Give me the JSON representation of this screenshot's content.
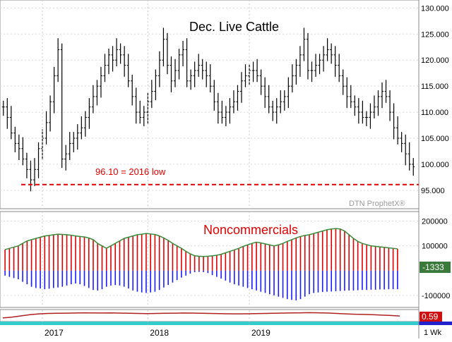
{
  "colors": {
    "price_bar": "#000000",
    "low_line": "#e00000",
    "buy_bar": "#e00000",
    "sell_bar": "#1a1aff",
    "net_line": "#3a8a3a",
    "net_badge": "#3a7a3a",
    "ratio_line": "#b02020",
    "ratio_badge": "#d01010",
    "bottom_strip": "#33cccc",
    "bottom_strip_right": "#2222cc"
  },
  "chart_data": [
    {
      "type": "bar",
      "subtype": "ohlc-weekly",
      "title": "Dec. Live Cattle",
      "watermark": "DTN ProphetX®",
      "annotation": {
        "text": "96.10 = 2016 low",
        "value": 96.1
      },
      "y_ticks": [
        "130.000",
        "125.000",
        "120.000",
        "115.000",
        "110.000",
        "105.000",
        "100.000",
        "95.000"
      ],
      "y_tick_values": [
        130,
        125,
        120,
        115,
        110,
        105,
        100,
        95
      ],
      "ylim": [
        92,
        131
      ],
      "x_labels": [
        "2017",
        "2018",
        "2019"
      ],
      "x_label_weeks": [
        10,
        37,
        63
      ],
      "approx_weekly_close": [
        111,
        109,
        106,
        104,
        103,
        101,
        99,
        97,
        99,
        103,
        105,
        108,
        112,
        117,
        122,
        101,
        102,
        104,
        105,
        106,
        107,
        109,
        111,
        113,
        115,
        117,
        119,
        121,
        120,
        122,
        121,
        119,
        116,
        113,
        110,
        109,
        110,
        112,
        114,
        117,
        120,
        124,
        119,
        116,
        118,
        121,
        122,
        116,
        117,
        118,
        119,
        118,
        117,
        115,
        112,
        110,
        109,
        110,
        111,
        112,
        114,
        116,
        117,
        118,
        118,
        117,
        115,
        113,
        111,
        110,
        111,
        112,
        113,
        115,
        117,
        119,
        121,
        124,
        118,
        118,
        119,
        120,
        121,
        122,
        121,
        119,
        117,
        115,
        113,
        112,
        111,
        110,
        109,
        109,
        110,
        111,
        113,
        114,
        113,
        110,
        107,
        105,
        104,
        102,
        100,
        99.5
      ]
    },
    {
      "type": "bar",
      "subtype": "net-position-histogram",
      "title": "Noncommercials",
      "y_ticks": [
        "200000",
        "100000",
        "-100000"
      ],
      "y_tick_values": [
        200000,
        100000,
        -100000
      ],
      "ylim": [
        -140000,
        230000
      ],
      "last_value_label": "-1333",
      "approx_long": [
        85000,
        90000,
        95000,
        100000,
        110000,
        120000,
        125000,
        130000,
        135000,
        140000,
        142000,
        145000,
        147000,
        146000,
        145000,
        143000,
        140000,
        138000,
        136000,
        132000,
        125000,
        110000,
        100000,
        90000,
        100000,
        110000,
        120000,
        130000,
        135000,
        140000,
        145000,
        147000,
        150000,
        148000,
        146000,
        140000,
        132000,
        122000,
        110000,
        100000,
        90000,
        78000,
        68000,
        60000,
        58000,
        57000,
        58000,
        60000,
        62000,
        66000,
        72000,
        78000,
        84000,
        90000,
        98000,
        104000,
        110000,
        115000,
        112000,
        108000,
        104000,
        100000,
        104000,
        110000,
        118000,
        125000,
        132000,
        138000,
        142000,
        145000,
        150000,
        155000,
        160000,
        165000,
        168000,
        170000,
        168000,
        160000,
        145000,
        130000,
        118000,
        110000,
        105000,
        100000,
        98000,
        96000,
        94000,
        92000,
        90000,
        88000
      ],
      "approx_short": [
        -20000,
        -25000,
        -30000,
        -35000,
        -45000,
        -55000,
        -65000,
        -70000,
        -72000,
        -75000,
        -73000,
        -70000,
        -68000,
        -65000,
        -60000,
        -55000,
        -52000,
        -55000,
        -62000,
        -70000,
        -78000,
        -80000,
        -75000,
        -65000,
        -60000,
        -58000,
        -60000,
        -65000,
        -72000,
        -80000,
        -85000,
        -88000,
        -90000,
        -88000,
        -85000,
        -78000,
        -68000,
        -58000,
        -48000,
        -38000,
        -28000,
        -20000,
        -12000,
        -6000,
        -5000,
        -6000,
        -10000,
        -18000,
        -25000,
        -32000,
        -40000,
        -48000,
        -55000,
        -60000,
        -65000,
        -70000,
        -75000,
        -80000,
        -85000,
        -90000,
        -95000,
        -100000,
        -105000,
        -110000,
        -115000,
        -118000,
        -120000,
        -115000,
        -105000,
        -95000,
        -90000,
        -88000,
        -86000,
        -85000,
        -84000,
        -83000,
        -82000,
        -81000,
        -80000,
        -80000,
        -79000,
        -78000,
        -78000,
        -77000,
        -77000,
        -76000,
        -76000,
        -75000,
        -75000,
        -75000
      ]
    },
    {
      "type": "line",
      "subtype": "ratio",
      "last_value_label": "0.59",
      "ylim": [
        0,
        1.2
      ],
      "approx_values": [
        0.35,
        0.45,
        0.6,
        0.75,
        0.85,
        0.9,
        0.92,
        0.93,
        0.95,
        0.97,
        0.96,
        0.95,
        0.96,
        0.94,
        0.92,
        0.9,
        0.88,
        0.9,
        0.92,
        0.93,
        0.95,
        0.94,
        0.92,
        0.9,
        0.88,
        0.86,
        0.85,
        0.86,
        0.88,
        0.9,
        0.92,
        0.94,
        0.96,
        0.98,
        1.0,
        0.98,
        0.95,
        0.9,
        0.85,
        0.8,
        0.78,
        0.75,
        0.7,
        0.65,
        0.59
      ]
    }
  ],
  "status": {
    "period_label": "1 Wk"
  }
}
